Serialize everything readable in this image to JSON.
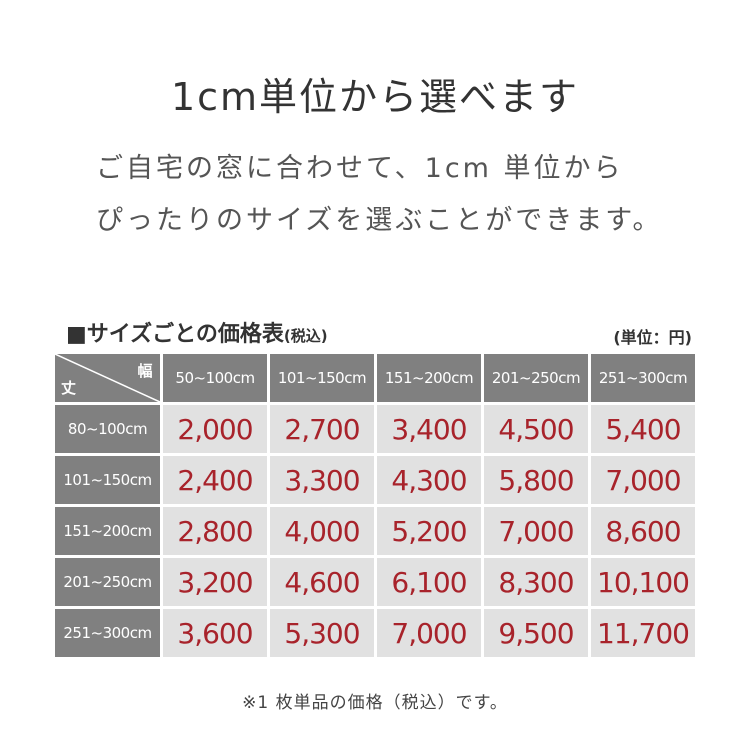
{
  "title": "1cm単位から選べます",
  "subtitle_lines": [
    "ご自宅の窓に合わせて、1cm 単位から",
    "ぴったりのサイズを選ぶことができます。"
  ],
  "table_title": "■サイズごとの価格表",
  "table_title_suffix": "(税込)",
  "unit": "(単位：円)",
  "corner": {
    "width_label": "幅",
    "height_label": "丈"
  },
  "columns": [
    "50~100cm",
    "101~150cm",
    "151~200cm",
    "201~250cm",
    "251~300cm"
  ],
  "rows": [
    {
      "label": "80~100cm",
      "prices": [
        "2,000",
        "2,700",
        "3,400",
        "4,500",
        "5,400"
      ]
    },
    {
      "label": "101~150cm",
      "prices": [
        "2,400",
        "3,300",
        "4,300",
        "5,800",
        "7,000"
      ]
    },
    {
      "label": "151~200cm",
      "prices": [
        "2,800",
        "4,000",
        "5,200",
        "7,000",
        "8,600"
      ]
    },
    {
      "label": "201~250cm",
      "prices": [
        "3,200",
        "4,600",
        "6,100",
        "8,300",
        "10,100"
      ]
    },
    {
      "label": "251~300cm",
      "prices": [
        "3,600",
        "5,300",
        "7,000",
        "9,500",
        "11,700"
      ]
    }
  ],
  "note": "※1 枚単品の価格（税込）です。",
  "colors": {
    "header": "#808080",
    "cell": "#e1e1e1",
    "price": "#a8232b"
  }
}
